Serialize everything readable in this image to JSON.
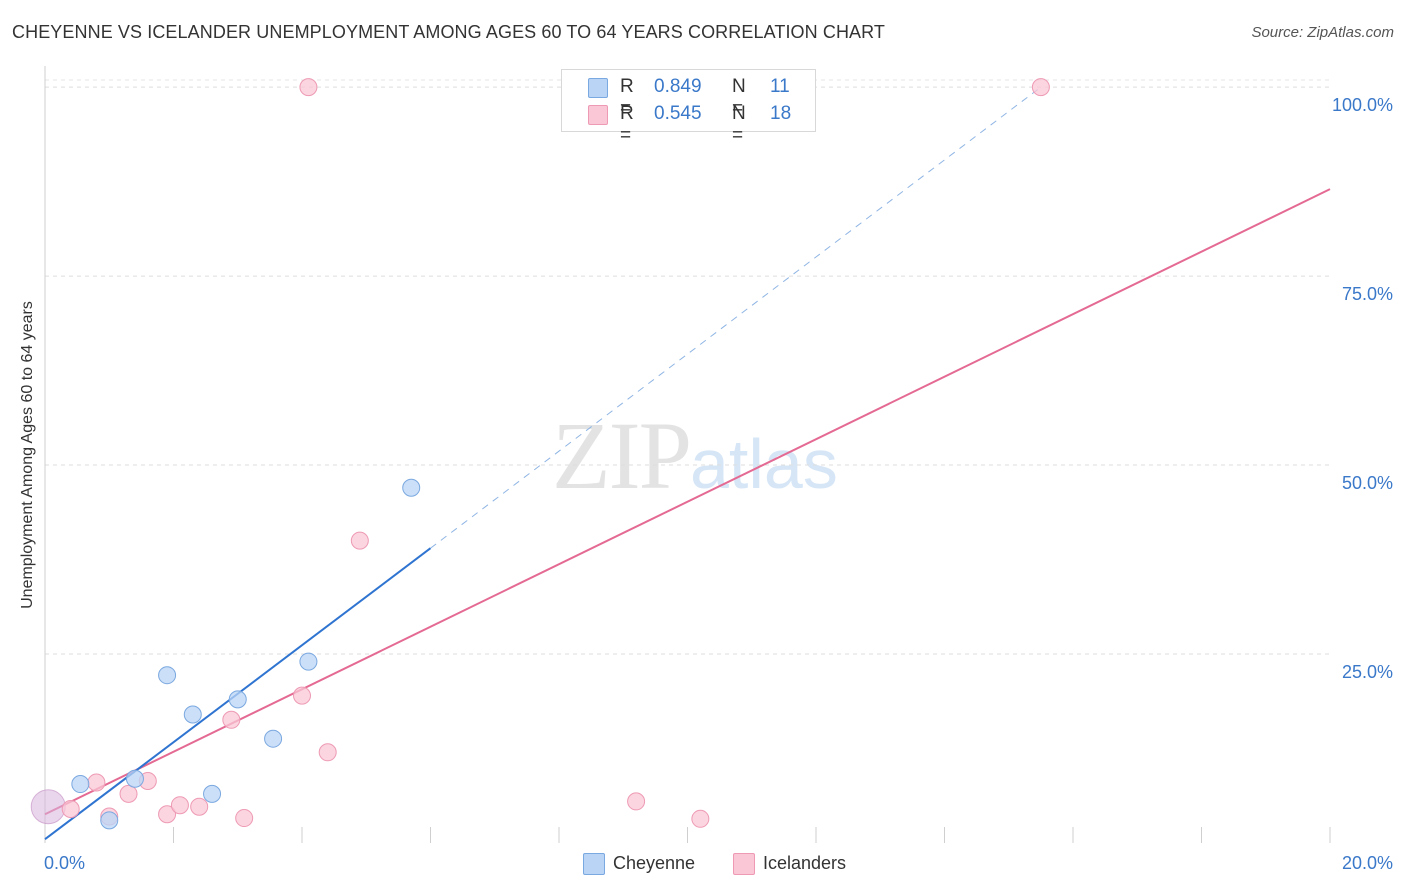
{
  "title": "CHEYENNE VS ICELANDER UNEMPLOYMENT AMONG AGES 60 TO 64 YEARS CORRELATION CHART",
  "source": "Source: ZipAtlas.com",
  "watermark": {
    "zip": "ZIP",
    "atlas": "atlas"
  },
  "colors": {
    "cheyenne_fill": "#b9d4f5",
    "cheyenne_stroke": "#7aa8e0",
    "cheyenne_line": "#2e74d0",
    "icelanders_fill": "#f9c7d6",
    "icelanders_stroke": "#ee9ab4",
    "icelanders_line": "#e46a93",
    "accent_text": "#3a78c9"
  },
  "legend": {
    "rows": [
      {
        "r_label": "R =",
        "r_value": "0.849",
        "n_label": "N =",
        "n_value": "11"
      },
      {
        "r_label": "R =",
        "r_value": "0.545",
        "n_label": "N =",
        "n_value": "18"
      }
    ]
  },
  "chart_data": {
    "type": "scatter",
    "title": "CHEYENNE VS ICELANDER UNEMPLOYMENT AMONG AGES 60 TO 64 YEARS CORRELATION CHART",
    "xlabel": "",
    "ylabel": "Unemployment Among Ages 60 to 64 years",
    "xlim": [
      0,
      20
    ],
    "ylim": [
      0,
      102
    ],
    "x_tick_labels": [
      "0.0%",
      "20.0%"
    ],
    "y_tick_values": [
      25,
      50,
      75,
      100
    ],
    "y_tick_labels": [
      "25.0%",
      "50.0%",
      "75.0%",
      "100.0%"
    ],
    "grid": true,
    "series": [
      {
        "name": "Cheyenne",
        "R": 0.849,
        "N": 11,
        "points": [
          {
            "x": 0.05,
            "y": 5.0
          },
          {
            "x": 0.55,
            "y": 7.8
          },
          {
            "x": 1.0,
            "y": 3.0
          },
          {
            "x": 1.4,
            "y": 8.5
          },
          {
            "x": 1.9,
            "y": 22.2
          },
          {
            "x": 2.3,
            "y": 17.0
          },
          {
            "x": 2.6,
            "y": 6.5
          },
          {
            "x": 3.0,
            "y": 19.0
          },
          {
            "x": 3.55,
            "y": 13.8
          },
          {
            "x": 4.1,
            "y": 24.0
          },
          {
            "x": 5.7,
            "y": 47.0
          }
        ],
        "trend": {
          "x_start": 0.0,
          "y_start": 0.5,
          "x_end": 6.0,
          "y_end": 39.0,
          "dashed_to_x": 15.5,
          "dashed_to_y": 100.0
        }
      },
      {
        "name": "Icelanders",
        "R": 0.545,
        "N": 18,
        "points": [
          {
            "x": 0.05,
            "y": 4.5
          },
          {
            "x": 0.4,
            "y": 4.5
          },
          {
            "x": 0.8,
            "y": 8.0
          },
          {
            "x": 1.0,
            "y": 3.5
          },
          {
            "x": 1.3,
            "y": 6.5
          },
          {
            "x": 1.6,
            "y": 8.2
          },
          {
            "x": 1.9,
            "y": 3.8
          },
          {
            "x": 2.1,
            "y": 5.0
          },
          {
            "x": 2.4,
            "y": 4.8
          },
          {
            "x": 2.9,
            "y": 16.3
          },
          {
            "x": 3.1,
            "y": 3.3
          },
          {
            "x": 4.0,
            "y": 19.5
          },
          {
            "x": 4.4,
            "y": 12.0
          },
          {
            "x": 4.1,
            "y": 100.0
          },
          {
            "x": 4.9,
            "y": 40.0
          },
          {
            "x": 9.2,
            "y": 5.5
          },
          {
            "x": 10.2,
            "y": 3.2
          },
          {
            "x": 15.5,
            "y": 100.0
          }
        ],
        "trend": {
          "x_start": 0.0,
          "y_start": 3.8,
          "x_end": 20.0,
          "y_end": 86.5
        }
      }
    ],
    "legend_position": "top-center"
  }
}
